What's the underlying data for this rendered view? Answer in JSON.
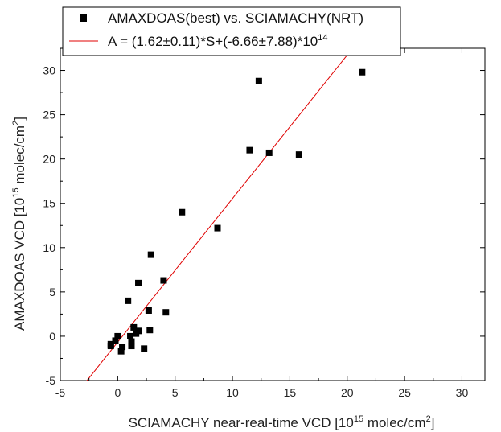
{
  "chart_data": {
    "type": "scatter",
    "xlabel": {
      "prefix": "SCIAMACHY near-real-time VCD [10",
      "exp": "15",
      "mid": " molec/cm",
      "exp2": "2",
      "suffix": "]"
    },
    "ylabel": {
      "prefix": "AMAXDOAS VCD [10",
      "exp": "15",
      "mid": " molec/cm",
      "exp2": "2",
      "suffix": "]"
    },
    "xlim": [
      -5,
      32
    ],
    "ylim": [
      -5,
      32.5
    ],
    "xticks": [
      -5,
      0,
      5,
      10,
      15,
      20,
      25,
      30
    ],
    "yticks": [
      -5,
      0,
      5,
      10,
      15,
      20,
      25,
      30
    ],
    "grid": false,
    "legend_position": "top-left",
    "series": [
      {
        "name": "AMAXDOAS(best) vs. SCIAMACHY(NRT)",
        "marker": "square",
        "color": "#000000",
        "points": [
          [
            21.3,
            29.8
          ],
          [
            12.3,
            28.8
          ],
          [
            11.5,
            21.0
          ],
          [
            13.2,
            20.7
          ],
          [
            15.8,
            20.5
          ],
          [
            5.6,
            14.0
          ],
          [
            8.7,
            12.2
          ],
          [
            2.9,
            9.2
          ],
          [
            1.8,
            6.0
          ],
          [
            4.0,
            6.3
          ],
          [
            0.9,
            4.0
          ],
          [
            2.7,
            2.9
          ],
          [
            4.2,
            2.7
          ],
          [
            1.4,
            1.0
          ],
          [
            1.8,
            0.6
          ],
          [
            2.8,
            0.7
          ],
          [
            1.6,
            0.3
          ],
          [
            1.1,
            0.0
          ],
          [
            0.0,
            0.0
          ],
          [
            -0.2,
            -0.5
          ],
          [
            1.2,
            -0.6
          ],
          [
            -0.6,
            -0.9
          ],
          [
            1.2,
            -1.1
          ],
          [
            -0.6,
            -1.1
          ],
          [
            0.4,
            -1.2
          ],
          [
            2.3,
            -1.4
          ],
          [
            0.3,
            -1.7
          ]
        ]
      }
    ],
    "fit": {
      "label": {
        "prefix": "A = (1.62±0.11)*S+(-6.66±7.88)*10",
        "exp": "14"
      },
      "color": "#e00000",
      "slope": 1.62,
      "intercept": -0.666
    }
  }
}
